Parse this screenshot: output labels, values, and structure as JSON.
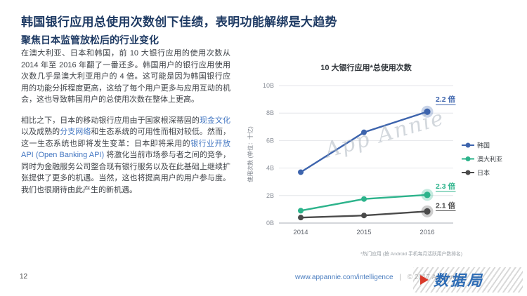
{
  "header": {
    "title": "韩国银行应用总使用次数创下佳绩，表明功能解绑是大趋势",
    "subtitle": "聚焦日本监管放松后的行业变化"
  },
  "body": {
    "paragraphs": [
      {
        "segments": [
          {
            "text": "在澳大利亚、日本和韩国，前 10 大银行应用的使用次数从 2014 年至 2016 年翻了一番还多。韩国用户的银行应用使用次数几乎是澳大利亚用户的 4 倍。这可能是因为韩国银行应用的功能分拆程度更高，这给了每个用户更多与应用互动的机会，这也导致韩国用户的总使用次数在整体上更高。",
            "link": false
          }
        ]
      },
      {
        "segments": [
          {
            "text": "相比之下，日本的移动银行应用由于国家根深蒂固的",
            "link": false
          },
          {
            "text": "现金文化",
            "link": true
          },
          {
            "text": "以及成熟的",
            "link": false
          },
          {
            "text": "分支网络",
            "link": true
          },
          {
            "text": "和生态系统的可用性而相对较低。然而，这一生态系统也即将发生变革：日本即将采用的",
            "link": false
          },
          {
            "text": "银行业开放 API (Open Banking API)",
            "link": true
          },
          {
            "text": " 将激化当前市场参与者之间的竞争，同时为金融服务公司整合现有银行服务以及在此基础上继续扩张提供了更多的机遇。当然，这也将提高用户的用户参与度。我们也很期待由此产生的新机遇。",
            "link": false
          }
        ]
      }
    ]
  },
  "chart_data": {
    "type": "line",
    "title": "10 大银行应用*总使用次数",
    "ylabel": "使用次数 (单位：十亿)",
    "categories": [
      "2014",
      "2015",
      "2016"
    ],
    "series": [
      {
        "name": "韩国",
        "color": "#3d64ad",
        "values": [
          3.7,
          6.6,
          8.1
        ],
        "multiplier_label": "2.2 倍"
      },
      {
        "name": "澳大利亚",
        "color": "#2cb38b",
        "values": [
          0.9,
          1.75,
          2.05
        ],
        "multiplier_label": "2.3 倍"
      },
      {
        "name": "日本",
        "color": "#4a4a4a",
        "values": [
          0.4,
          0.55,
          0.85
        ],
        "multiplier_label": "2.1 倍"
      }
    ],
    "ylim": [
      0,
      10
    ],
    "yticks": [
      "0B",
      "2B",
      "4B",
      "6B",
      "8B",
      "10B"
    ],
    "ytick_values": [
      0,
      2,
      4,
      6,
      8,
      10
    ],
    "grid": true,
    "legend_position": "right",
    "footnote": "*热门应用 (按 Android 手机每月活跃用户数排名)",
    "watermark": "App Annie"
  },
  "footer": {
    "page_number": "12",
    "link": "www.appannie.com/intelligence",
    "separator": "|",
    "copyright": "© 2017 App Annie",
    "watermark_logo": "数据局"
  },
  "colors": {
    "title_navy": "#1e3a63",
    "link_blue": "#4477c2",
    "korea_blue": "#3d64ad",
    "australia_green": "#2cb38b",
    "japan_gray": "#4a4a4a"
  }
}
